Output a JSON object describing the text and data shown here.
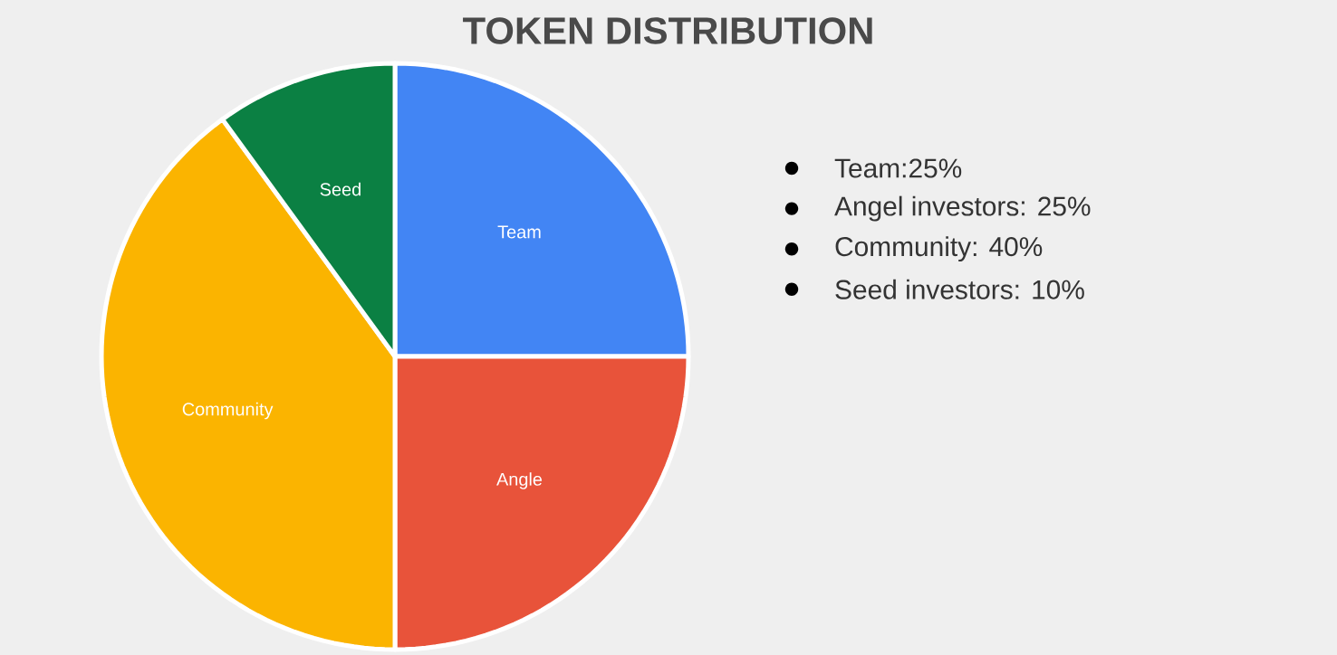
{
  "chart_data": {
    "type": "pie",
    "title": "TOKEN DISTRIBUTION",
    "categories": [
      "Team",
      "Angle",
      "Community",
      "Seed"
    ],
    "values": [
      25,
      25,
      40,
      10
    ],
    "colors": [
      "#4285f4",
      "#e8533a",
      "#fbb400",
      "#0b8043"
    ],
    "annotations": [
      "Team:25%",
      "Angel investors: 25%",
      "Community: 40%",
      "Seed investors: 10%"
    ]
  }
}
